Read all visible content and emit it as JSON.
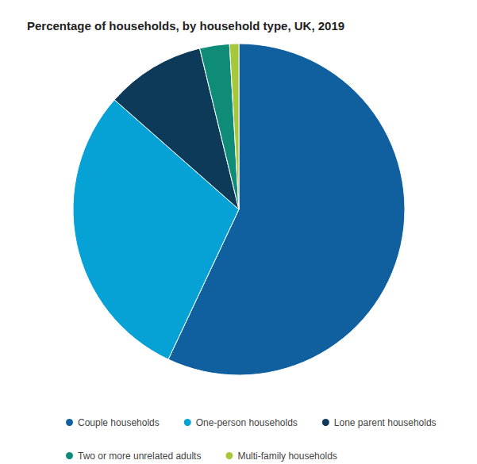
{
  "chart_data": {
    "type": "pie",
    "title": "Percentage of households, by household type, UK, 2019",
    "categories": [
      "Couple households",
      "One-person households",
      "Lone parent households",
      "Two or more unrelated adults",
      "Multi-family households"
    ],
    "values": [
      57.0,
      29.5,
      9.7,
      2.9,
      0.9
    ],
    "colors": [
      "#10609f",
      "#06a2d6",
      "#0d3a59",
      "#0f8c78",
      "#a6c83a"
    ],
    "legend": "bottom",
    "data_labels": false
  }
}
